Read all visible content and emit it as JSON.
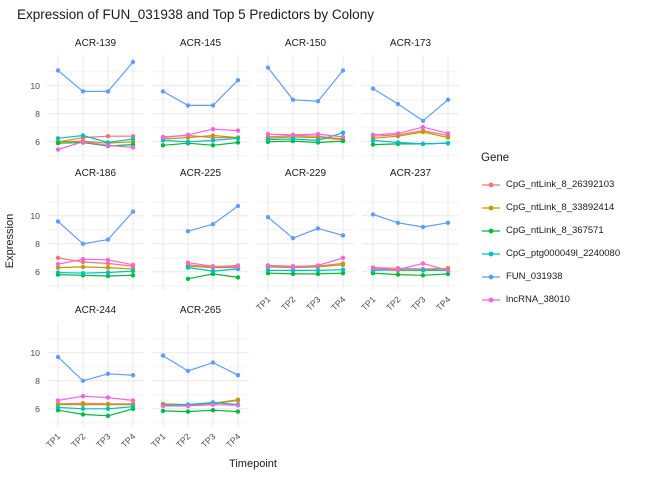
{
  "chart_data": {
    "type": "line",
    "title": "Expression of FUN_031938 and Top 5 Predictors by Colony",
    "xlabel": "Timepoint",
    "ylabel": "Expression",
    "legend_title": "Gene",
    "legend_position": "right",
    "facet_by": "Colony",
    "x_categories": [
      "TP1",
      "TP2",
      "TP3",
      "TP4"
    ],
    "y_major_ticks": [
      6,
      8,
      10
    ],
    "y_minor_ticks": [
      5,
      7,
      9,
      11
    ],
    "ylim": [
      4.7,
      12.2
    ],
    "grid": true,
    "series": [
      {
        "name": "CpG_ntLink_8_26392103",
        "color": "#F8766D"
      },
      {
        "name": "CpG_ntLink_8_33892414",
        "color": "#B79F00"
      },
      {
        "name": "CpG_ntLink_8_367571",
        "color": "#00BA38"
      },
      {
        "name": "CpG_ptg000049l_2240080",
        "color": "#00BFC4"
      },
      {
        "name": "FUN_031938",
        "color": "#619CFF"
      },
      {
        "name": "lncRNA_38010",
        "color": "#F564E3"
      }
    ],
    "facets": [
      {
        "name": "ACR-139",
        "values": {
          "CpG_ntLink_8_26392103": [
            6.0,
            6.3,
            6.4,
            6.4
          ],
          "CpG_ntLink_8_33892414": [
            6.0,
            6.05,
            5.9,
            6.0
          ],
          "CpG_ntLink_8_367571": [
            5.9,
            5.95,
            5.7,
            5.8
          ],
          "CpG_ptg000049l_2240080": [
            6.25,
            6.45,
            5.95,
            6.2
          ],
          "FUN_031938": [
            11.1,
            9.6,
            9.6,
            11.7
          ],
          "lncRNA_38010": [
            5.45,
            6.0,
            5.75,
            5.6
          ]
        }
      },
      {
        "name": "ACR-145",
        "values": {
          "CpG_ntLink_8_26392103": [
            6.35,
            6.45,
            6.3,
            6.3
          ],
          "CpG_ntLink_8_33892414": [
            6.2,
            6.3,
            6.45,
            6.3
          ],
          "CpG_ntLink_8_367571": [
            5.75,
            5.9,
            5.75,
            5.95
          ],
          "CpG_ptg000049l_2240080": [
            6.1,
            6.0,
            6.1,
            6.25
          ],
          "FUN_031938": [
            9.6,
            8.6,
            8.6,
            10.4
          ],
          "lncRNA_38010": [
            6.3,
            6.5,
            6.9,
            6.8
          ]
        }
      },
      {
        "name": "ACR-150",
        "values": {
          "CpG_ntLink_8_26392103": [
            6.35,
            6.45,
            6.4,
            6.2
          ],
          "CpG_ntLink_8_33892414": [
            6.25,
            6.35,
            6.3,
            6.15
          ],
          "CpG_ntLink_8_367571": [
            6.0,
            6.05,
            5.95,
            6.05
          ],
          "CpG_ptg000049l_2240080": [
            6.15,
            6.2,
            6.1,
            6.65
          ],
          "FUN_031938": [
            11.3,
            9.0,
            8.9,
            11.1
          ],
          "lncRNA_38010": [
            6.55,
            6.5,
            6.55,
            6.35
          ]
        }
      },
      {
        "name": "ACR-173",
        "values": {
          "CpG_ntLink_8_26392103": [
            6.4,
            6.5,
            6.8,
            6.45
          ],
          "CpG_ntLink_8_33892414": [
            6.25,
            6.4,
            6.7,
            6.3
          ],
          "CpG_ntLink_8_367571": [
            5.8,
            5.85,
            5.85,
            5.9
          ],
          "CpG_ptg000049l_2240080": [
            6.1,
            5.95,
            5.85,
            5.9
          ],
          "FUN_031938": [
            9.8,
            8.7,
            7.5,
            9.0
          ],
          "lncRNA_38010": [
            6.5,
            6.6,
            7.05,
            6.6
          ]
        }
      },
      {
        "name": "ACR-186",
        "values": {
          "CpG_ntLink_8_26392103": [
            7.0,
            6.7,
            6.6,
            6.4
          ],
          "CpG_ntLink_8_33892414": [
            6.3,
            6.35,
            6.3,
            6.2
          ],
          "CpG_ntLink_8_367571": [
            5.8,
            5.75,
            5.7,
            5.75
          ],
          "CpG_ptg000049l_2240080": [
            5.95,
            5.9,
            5.95,
            6.05
          ],
          "FUN_031938": [
            9.6,
            8.0,
            8.3,
            10.3
          ],
          "lncRNA_38010": [
            6.55,
            6.9,
            6.85,
            6.5
          ]
        }
      },
      {
        "name": "ACR-225",
        "values": {
          "CpG_ntLink_8_26392103": [
            null,
            6.5,
            6.35,
            6.45
          ],
          "CpG_ntLink_8_33892414": [
            null,
            6.4,
            6.3,
            6.3
          ],
          "CpG_ntLink_8_367571": [
            null,
            5.5,
            5.85,
            5.6
          ],
          "CpG_ptg000049l_2240080": [
            null,
            6.3,
            6.05,
            6.2
          ],
          "FUN_031938": [
            null,
            8.9,
            9.4,
            10.7
          ],
          "lncRNA_38010": [
            null,
            6.65,
            6.4,
            6.35
          ]
        }
      },
      {
        "name": "ACR-229",
        "values": {
          "CpG_ntLink_8_26392103": [
            6.45,
            6.4,
            6.4,
            6.6
          ],
          "CpG_ntLink_8_33892414": [
            6.35,
            6.3,
            6.35,
            6.5
          ],
          "CpG_ntLink_8_367571": [
            5.9,
            5.85,
            5.85,
            5.9
          ],
          "CpG_ptg000049l_2240080": [
            6.1,
            6.1,
            6.1,
            6.15
          ],
          "FUN_031938": [
            9.9,
            8.4,
            9.1,
            8.6
          ],
          "lncRNA_38010": [
            6.45,
            6.35,
            6.45,
            7.0
          ]
        }
      },
      {
        "name": "ACR-237",
        "values": {
          "CpG_ntLink_8_26392103": [
            6.3,
            6.25,
            6.2,
            6.25
          ],
          "CpG_ntLink_8_33892414": [
            6.15,
            6.1,
            6.1,
            6.25
          ],
          "CpG_ntLink_8_367571": [
            5.9,
            5.8,
            5.75,
            5.85
          ],
          "CpG_ptg000049l_2240080": [
            6.1,
            6.15,
            6.1,
            6.1
          ],
          "FUN_031938": [
            10.1,
            9.5,
            9.2,
            9.5
          ],
          "lncRNA_38010": [
            6.25,
            6.15,
            6.6,
            6.1
          ]
        }
      },
      {
        "name": "ACR-244",
        "values": {
          "CpG_ntLink_8_26392103": [
            6.35,
            6.4,
            6.35,
            6.35
          ],
          "CpG_ntLink_8_33892414": [
            6.3,
            6.3,
            6.3,
            6.3
          ],
          "CpG_ntLink_8_367571": [
            5.9,
            5.6,
            5.5,
            6.0
          ],
          "CpG_ptg000049l_2240080": [
            6.1,
            6.0,
            6.0,
            6.15
          ],
          "FUN_031938": [
            9.7,
            8.0,
            8.5,
            8.4
          ],
          "lncRNA_38010": [
            6.6,
            6.9,
            6.8,
            6.6
          ]
        }
      },
      {
        "name": "ACR-265",
        "values": {
          "CpG_ntLink_8_26392103": [
            6.3,
            6.25,
            6.35,
            6.6
          ],
          "CpG_ntLink_8_33892414": [
            6.35,
            6.3,
            6.4,
            6.65
          ],
          "CpG_ntLink_8_367571": [
            5.85,
            5.8,
            5.9,
            5.8
          ],
          "CpG_ptg000049l_2240080": [
            6.25,
            6.3,
            6.45,
            6.3
          ],
          "FUN_031938": [
            9.8,
            8.7,
            9.3,
            8.4
          ],
          "lncRNA_38010": [
            6.2,
            6.2,
            6.3,
            6.25
          ]
        }
      }
    ],
    "style": {
      "background": "#ffffff",
      "grid_major_color": "#e8e8e8",
      "grid_minor_color": "#f1f1f1",
      "text_color": "#1a1a1a",
      "tick_text_color": "#4d4d4d"
    }
  }
}
